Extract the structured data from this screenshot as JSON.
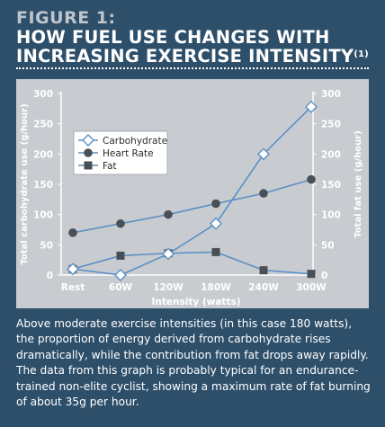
{
  "figure": {
    "label": "FIGURE 1:",
    "title_line1": "HOW FUEL USE CHANGES WITH",
    "title_line2": "INCREASING EXERCISE INTENSITY",
    "title_sup": "(1)"
  },
  "caption": "Above moderate exercise intensities (in this case 180 watts), the proportion of energy derived from carbohydrate rises dramatically, while the contribution from fat drops away rapidly. The data from this graph is probably typical for an endurance-trained non-elite cyclist, showing a maximum rate of fat burning of about 35g per hour.",
  "colors": {
    "background": "#2e4f6a",
    "panel": "#c8ccd1",
    "line": "#5b8fc4",
    "marker_dark": "#4a4f57",
    "axis_text": "#ffffff"
  },
  "chart_data": {
    "type": "line",
    "categories": [
      "Rest",
      "60W",
      "120W",
      "180W",
      "240W",
      "300W"
    ],
    "xlabel": "Intensity (watts)",
    "ylabel_left": "Total carbohydrate use (g/hour)",
    "ylabel_right": "Total fat use (g/hour)",
    "ylim": [
      0,
      300
    ],
    "yticks": [
      0,
      50,
      100,
      150,
      200,
      250,
      300
    ],
    "grid": false,
    "legend_position": "upper-left",
    "series": [
      {
        "name": "Carbohydrate",
        "marker": "diamond-open",
        "values": [
          10,
          0,
          35,
          85,
          200,
          278
        ]
      },
      {
        "name": "Heart Rate",
        "marker": "circle-filled",
        "values": [
          70,
          85,
          100,
          118,
          135,
          158
        ]
      },
      {
        "name": "Fat",
        "marker": "square-filled",
        "values": [
          10,
          32,
          36,
          38,
          8,
          2
        ]
      }
    ]
  }
}
